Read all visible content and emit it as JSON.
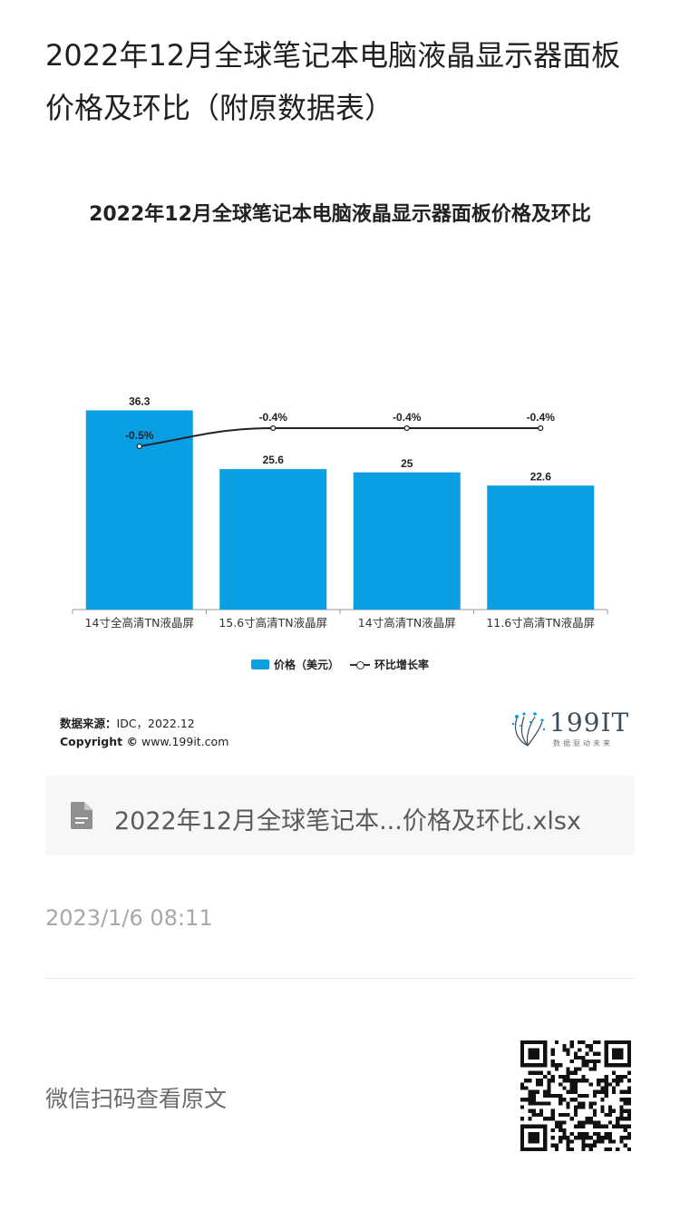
{
  "page": {
    "title": "2022年12月全球笔记本电脑液晶显示器面板价格及环比（附原数据表）"
  },
  "chart_data": {
    "type": "bar",
    "title": "2022年12月全球笔记本电脑液晶显示器面板价格及环比",
    "categories": [
      "14寸全高清TN液晶屏",
      "15.6寸高清TN液晶屏",
      "14寸高清TN液晶屏",
      "11.6寸高清TN液晶屏"
    ],
    "series": [
      {
        "name": "价格（美元）",
        "type": "bar",
        "values": [
          36.3,
          25.6,
          25,
          22.6
        ],
        "labels": [
          "36.3",
          "25.6",
          "25",
          "22.6"
        ],
        "color": "#0a9ee3"
      },
      {
        "name": "环比增长率",
        "type": "line",
        "values": [
          -0.5,
          -0.4,
          -0.4,
          -0.4
        ],
        "labels": [
          "-0.5%",
          "-0.4%",
          "-0.4%",
          "-0.4%"
        ],
        "color": "#222222"
      }
    ],
    "ylim": [
      0,
      40
    ],
    "grid": false,
    "legend": "bottom"
  },
  "source": {
    "label": "数据来源：",
    "value": "IDC，2022.12",
    "copyright_label": "Copyright ©",
    "copyright_value": "www.199it.com"
  },
  "brand": {
    "name": "199IT",
    "tagline": "数据驱动未来"
  },
  "attachment": {
    "icon": "file-icon",
    "name": "2022年12月全球笔记本...价格及环比.xlsx"
  },
  "meta": {
    "timestamp": "2023/1/6 08:11",
    "qr_label": "微信扫码查看原文"
  }
}
